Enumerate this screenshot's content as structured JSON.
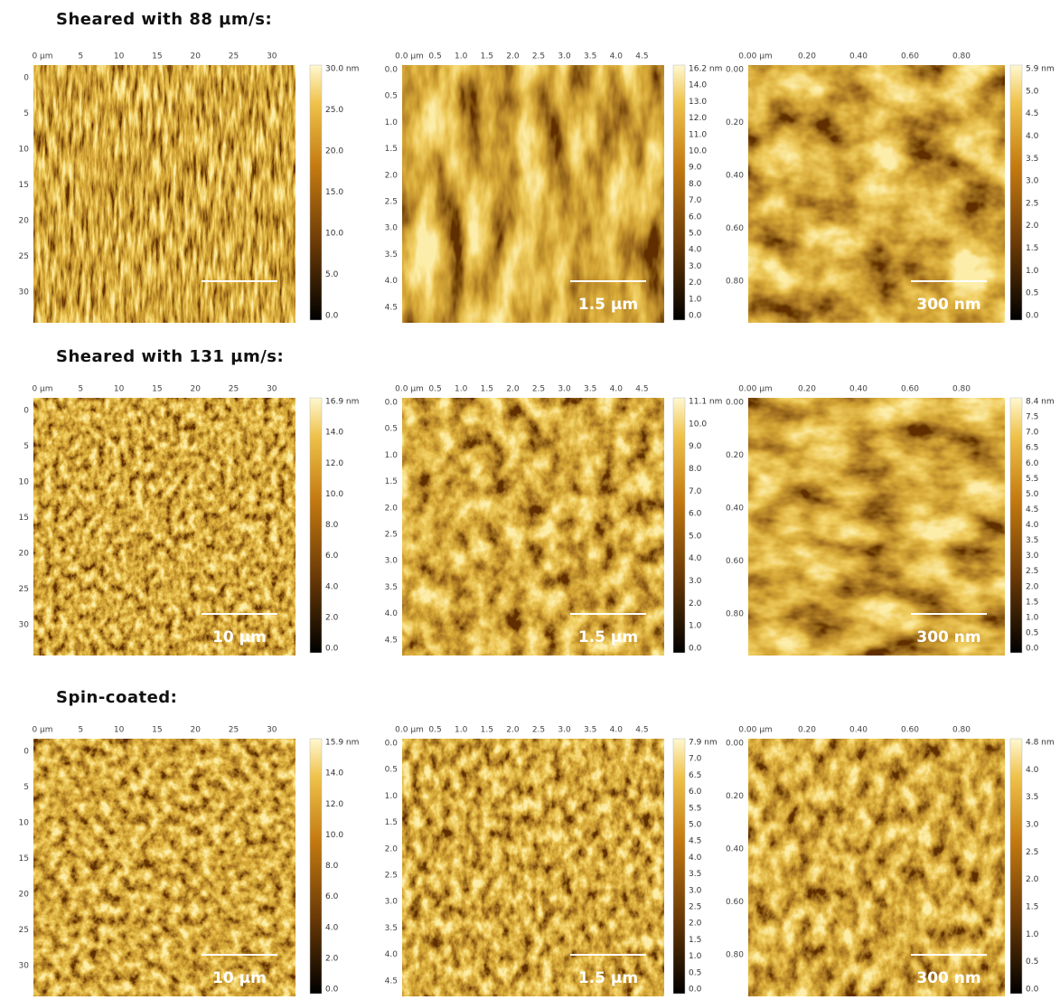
{
  "rows": [
    {
      "title": "Sheared with 88 µm/s:",
      "panels": [
        {
          "x_ticks": [
            "0 µm",
            "5",
            "10",
            "15",
            "20",
            "25",
            "30"
          ],
          "y_ticks": [
            "0",
            "5",
            "10",
            "15",
            "20",
            "25",
            "30"
          ],
          "colorbar": [
            "30.0 nm",
            "25.0",
            "20.0",
            "15.0",
            "10.0",
            "5.0",
            "0.0"
          ]
        },
        {
          "x_ticks": [
            "0.0 µm",
            "0.5",
            "1.0",
            "1.5",
            "2.0",
            "2.5",
            "3.0",
            "3.5",
            "4.0",
            "4.5"
          ],
          "y_ticks": [
            "0.0",
            "0.5",
            "1.0",
            "1.5",
            "2.0",
            "2.5",
            "3.0",
            "3.5",
            "4.0",
            "4.5"
          ],
          "colorbar": [
            "16.2 nm",
            "14.0",
            "13.0",
            "12.0",
            "11.0",
            "10.0",
            "9.0",
            "8.0",
            "7.0",
            "6.0",
            "5.0",
            "4.0",
            "3.0",
            "2.0",
            "1.0",
            "0.0"
          ],
          "scale_bar": "1.5 µm"
        },
        {
          "x_ticks": [
            "0.00 µm",
            "0.20",
            "0.40",
            "0.60",
            "0.80"
          ],
          "y_ticks": [
            "0.00",
            "0.20",
            "0.40",
            "0.60",
            "0.80"
          ],
          "colorbar": [
            "5.9 nm",
            "5.0",
            "4.5",
            "4.0",
            "3.5",
            "3.0",
            "2.5",
            "2.0",
            "1.5",
            "1.0",
            "0.5",
            "0.0"
          ],
          "scale_bar": "300 nm"
        }
      ]
    },
    {
      "title": "Sheared with 131 µm/s:",
      "panels": [
        {
          "x_ticks": [
            "0 µm",
            "5",
            "10",
            "15",
            "20",
            "25",
            "30"
          ],
          "y_ticks": [
            "0",
            "5",
            "10",
            "15",
            "20",
            "25",
            "30"
          ],
          "colorbar": [
            "16.9 nm",
            "14.0",
            "12.0",
            "10.0",
            "8.0",
            "6.0",
            "4.0",
            "2.0",
            "0.0"
          ],
          "scale_bar": "10 µm"
        },
        {
          "x_ticks": [
            "0.0 µm",
            "0.5",
            "1.0",
            "1.5",
            "2.0",
            "2.5",
            "3.0",
            "3.5",
            "4.0",
            "4.5"
          ],
          "y_ticks": [
            "0.0",
            "0.5",
            "1.0",
            "1.5",
            "2.0",
            "2.5",
            "3.0",
            "3.5",
            "4.0",
            "4.5"
          ],
          "colorbar": [
            "11.1 nm",
            "10.0",
            "9.0",
            "8.0",
            "7.0",
            "6.0",
            "5.0",
            "4.0",
            "3.0",
            "2.0",
            "1.0",
            "0.0"
          ],
          "scale_bar": "1.5 µm"
        },
        {
          "x_ticks": [
            "0.00 µm",
            "0.20",
            "0.40",
            "0.60",
            "0.80"
          ],
          "y_ticks": [
            "0.00",
            "0.20",
            "0.40",
            "0.60",
            "0.80"
          ],
          "colorbar": [
            "8.4 nm",
            "7.5",
            "7.0",
            "6.5",
            "6.0",
            "5.5",
            "5.0",
            "4.5",
            "4.0",
            "3.5",
            "3.0",
            "2.5",
            "2.0",
            "1.5",
            "1.0",
            "0.5",
            "0.0"
          ],
          "scale_bar": "300 nm"
        }
      ]
    },
    {
      "title": "Spin-coated:",
      "panels": [
        {
          "x_ticks": [
            "0 µm",
            "5",
            "10",
            "15",
            "20",
            "25",
            "30"
          ],
          "y_ticks": [
            "0",
            "5",
            "10",
            "15",
            "20",
            "25",
            "30"
          ],
          "colorbar": [
            "15.9 nm",
            "14.0",
            "12.0",
            "10.0",
            "8.0",
            "6.0",
            "4.0",
            "2.0",
            "0.0"
          ],
          "scale_bar": "10 µm"
        },
        {
          "x_ticks": [
            "0.0 µm",
            "0.5",
            "1.0",
            "1.5",
            "2.0",
            "2.5",
            "3.0",
            "3.5",
            "4.0",
            "4.5"
          ],
          "y_ticks": [
            "0.0",
            "0.5",
            "1.0",
            "1.5",
            "2.0",
            "2.5",
            "3.0",
            "3.5",
            "4.0",
            "4.5"
          ],
          "colorbar": [
            "7.9 nm",
            "7.0",
            "6.5",
            "6.0",
            "5.5",
            "5.0",
            "4.5",
            "4.0",
            "3.5",
            "3.0",
            "2.5",
            "2.0",
            "1.5",
            "1.0",
            "0.5",
            "0.0"
          ],
          "scale_bar": "1.5 µm"
        },
        {
          "x_ticks": [
            "0.00 µm",
            "0.20",
            "0.40",
            "0.60",
            "0.80"
          ],
          "y_ticks": [
            "0.00",
            "0.20",
            "0.40",
            "0.60",
            "0.80"
          ],
          "colorbar": [
            "4.8 nm",
            "4.0",
            "3.5",
            "3.0",
            "2.5",
            "2.0",
            "1.5",
            "1.0",
            "0.5",
            "0.0"
          ],
          "scale_bar": "300 nm"
        }
      ]
    }
  ]
}
